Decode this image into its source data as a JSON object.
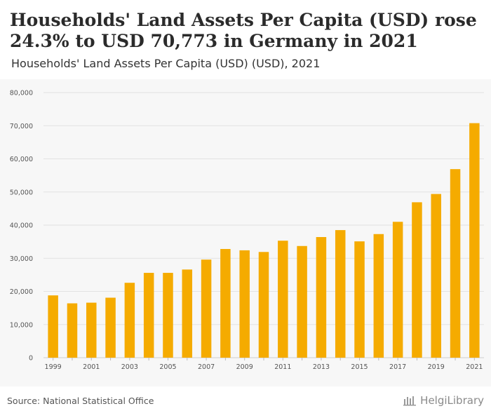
{
  "title": "Households' Land Assets Per Capita (USD) rose 24.3% to USD 70,773 in Germany in 2021",
  "subtitle": "Households' Land Assets Per Capita (USD) (USD), 2021",
  "source": "Source: National Statistical Office",
  "brand": "HelgiLibrary",
  "colors": {
    "bar": "#f5ab00",
    "grid": "#e2e2e2",
    "background": "#f7f7f7"
  },
  "chart_data": {
    "type": "bar",
    "title": "Households' Land Assets Per Capita (USD) rose 24.3% to USD 70,773 in Germany in 2021",
    "subtitle": "Households' Land Assets Per Capita (USD) (USD), 2021",
    "xlabel": "",
    "ylabel": "",
    "ylim": [
      0,
      80000
    ],
    "yticks": [
      "0",
      "10,000",
      "20,000",
      "30,000",
      "40,000",
      "50,000",
      "60,000",
      "70,000",
      "80,000"
    ],
    "ytick_values": [
      0,
      10000,
      20000,
      30000,
      40000,
      50000,
      60000,
      70000,
      80000
    ],
    "grid": true,
    "categories": [
      "1999",
      "2000",
      "2001",
      "2002",
      "2003",
      "2004",
      "2005",
      "2006",
      "2007",
      "2008",
      "2009",
      "2010",
      "2011",
      "2012",
      "2013",
      "2014",
      "2015",
      "2016",
      "2017",
      "2018",
      "2019",
      "2020",
      "2021"
    ],
    "xtick_labels": [
      "1999",
      "",
      "2001",
      "",
      "2003",
      "",
      "2005",
      "",
      "2007",
      "",
      "2009",
      "",
      "2011",
      "",
      "2013",
      "",
      "2015",
      "",
      "2017",
      "",
      "2019",
      "",
      "2021"
    ],
    "values": [
      18800,
      16400,
      16600,
      18100,
      22600,
      25600,
      25600,
      26600,
      29600,
      32800,
      32400,
      31900,
      35300,
      33700,
      36400,
      38500,
      35100,
      37300,
      41000,
      46900,
      49400,
      56900,
      70773
    ]
  }
}
